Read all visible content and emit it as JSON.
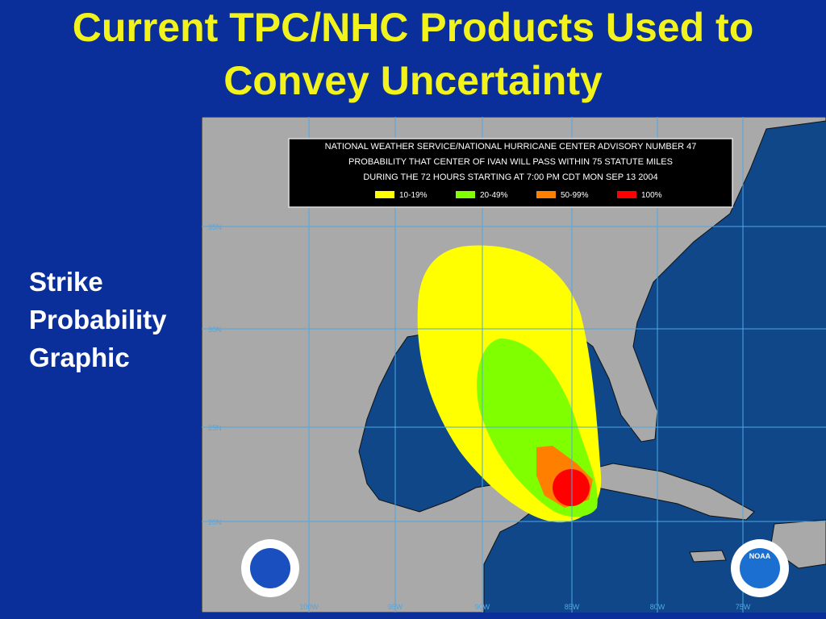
{
  "slide": {
    "title_line1": "Current TPC/NHC Products Used to",
    "title_line2": "Convey Uncertainty",
    "side_text": [
      "Strike",
      "Probability",
      "Graphic"
    ]
  },
  "map": {
    "header": [
      "NATIONAL WEATHER SERVICE/NATIONAL HURRICANE CENTER ADVISORY NUMBER  47",
      "PROBABILITY THAT CENTER OF IVAN WILL PASS WITHIN 75 STATUTE MILES",
      "DURING THE 72 HOURS STARTING AT  7:00 PM CDT MON SEP 13 2004"
    ],
    "legend": [
      {
        "label": "10-19%",
        "color": "#ffff00"
      },
      {
        "label": "20-49%",
        "color": "#80ff00"
      },
      {
        "label": "50-99%",
        "color": "#ff8000"
      },
      {
        "label": "100%",
        "color": "#ff0000"
      }
    ],
    "lat_labels": [
      "35N",
      "30N",
      "25N",
      "20N"
    ],
    "lon_labels": [
      "100W",
      "95W",
      "90W",
      "85W",
      "80W",
      "75W"
    ],
    "logo_right": "NOAA"
  }
}
